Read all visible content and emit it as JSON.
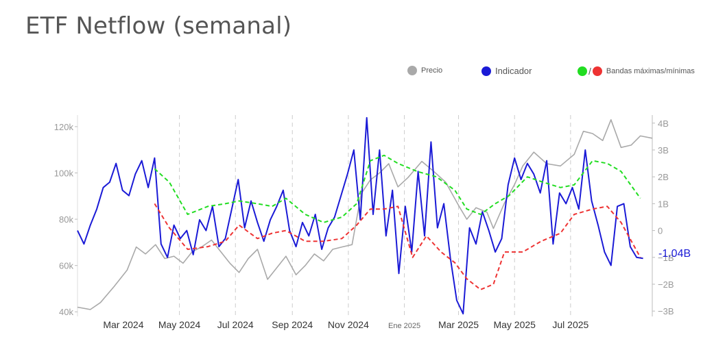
{
  "title": "ETF Netflow (semanal)",
  "legend": {
    "price": {
      "label": "Precio",
      "color": "#a9a9a9"
    },
    "indicator": {
      "label": "Indicador",
      "color": "#1a1ad6"
    },
    "bands": {
      "label": "Bandas máximas/mínimas",
      "max_color": "#22dd22",
      "min_color": "#ee3333",
      "separator": "/"
    }
  },
  "chart_data": {
    "type": "line",
    "title": "ETF Netflow (semanal)",
    "x_range": [
      "2024-01-11",
      "2025-09-28"
    ],
    "x_ticks": [
      {
        "date": "2024-03-01",
        "label": "Mar 2024",
        "gridline": false
      },
      {
        "date": "2024-05-01",
        "label": "May 2024",
        "gridline": true
      },
      {
        "date": "2024-07-01",
        "label": "Jul 2024",
        "gridline": true
      },
      {
        "date": "2024-09-01",
        "label": "Sep 2024",
        "gridline": true
      },
      {
        "date": "2024-11-01",
        "label": "Nov 2024",
        "gridline": true
      },
      {
        "date": "2025-01-01",
        "label": "Ene 2025",
        "gridline": true,
        "small": true
      },
      {
        "date": "2025-03-01",
        "label": "Mar 2025",
        "gridline": true
      },
      {
        "date": "2025-05-01",
        "label": "May 2025",
        "gridline": true
      },
      {
        "date": "2025-07-01",
        "label": "Jul 2025",
        "gridline": true
      }
    ],
    "y_left": {
      "range": [
        38000,
        125000
      ],
      "ticks": [
        {
          "v": 40000,
          "label": "40k"
        },
        {
          "v": 60000,
          "label": "60k"
        },
        {
          "v": 80000,
          "label": "80k"
        },
        {
          "v": 100000,
          "label": "100k"
        },
        {
          "v": 120000,
          "label": "120k"
        }
      ]
    },
    "y_right": {
      "range": [
        -3.2,
        4.3
      ],
      "ticks": [
        {
          "v": -3,
          "label": "−3B"
        },
        {
          "v": -2,
          "label": "−2B"
        },
        {
          "v": -1,
          "label": "−1B"
        },
        {
          "v": 0,
          "label": "0"
        },
        {
          "v": 1,
          "label": "1B"
        },
        {
          "v": 2,
          "label": "2B"
        },
        {
          "v": 3,
          "label": "3B"
        },
        {
          "v": 4,
          "label": "4B"
        }
      ]
    },
    "last_value_label": "-1.04B",
    "series": [
      {
        "name": "Precio",
        "axis": "left",
        "color": "#a9a9a9",
        "points": [
          [
            "2024-01-11",
            42000
          ],
          [
            "2024-01-25",
            41000
          ],
          [
            "2024-02-05",
            44000
          ],
          [
            "2024-02-20",
            51000
          ],
          [
            "2024-03-05",
            58000
          ],
          [
            "2024-03-15",
            68000
          ],
          [
            "2024-03-25",
            65000
          ],
          [
            "2024-04-05",
            69000
          ],
          [
            "2024-04-15",
            63000
          ],
          [
            "2024-04-25",
            64000
          ],
          [
            "2024-05-05",
            61000
          ],
          [
            "2024-05-15",
            66000
          ],
          [
            "2024-05-25",
            68000
          ],
          [
            "2024-06-05",
            71000
          ],
          [
            "2024-06-15",
            66000
          ],
          [
            "2024-06-25",
            61000
          ],
          [
            "2024-07-05",
            57000
          ],
          [
            "2024-07-15",
            63000
          ],
          [
            "2024-07-25",
            67000
          ],
          [
            "2024-08-05",
            54000
          ],
          [
            "2024-08-15",
            59000
          ],
          [
            "2024-08-25",
            64000
          ],
          [
            "2024-09-05",
            56000
          ],
          [
            "2024-09-15",
            60000
          ],
          [
            "2024-09-25",
            65000
          ],
          [
            "2024-10-05",
            62000
          ],
          [
            "2024-10-15",
            67000
          ],
          [
            "2024-10-25",
            68000
          ],
          [
            "2024-11-05",
            69000
          ],
          [
            "2024-11-15",
            91000
          ],
          [
            "2024-11-25",
            97000
          ],
          [
            "2024-12-05",
            100000
          ],
          [
            "2024-12-15",
            104000
          ],
          [
            "2024-12-25",
            94000
          ],
          [
            "2025-01-05",
            98000
          ],
          [
            "2025-01-20",
            105000
          ],
          [
            "2025-02-01",
            101000
          ],
          [
            "2025-02-15",
            96000
          ],
          [
            "2025-03-01",
            86000
          ],
          [
            "2025-03-10",
            80000
          ],
          [
            "2025-03-20",
            85000
          ],
          [
            "2025-04-01",
            83000
          ],
          [
            "2025-04-08",
            76000
          ],
          [
            "2025-04-20",
            87000
          ],
          [
            "2025-05-01",
            95000
          ],
          [
            "2025-05-10",
            103000
          ],
          [
            "2025-05-22",
            109000
          ],
          [
            "2025-06-05",
            104000
          ],
          [
            "2025-06-20",
            103000
          ],
          [
            "2025-07-05",
            108000
          ],
          [
            "2025-07-15",
            118000
          ],
          [
            "2025-07-25",
            117000
          ],
          [
            "2025-08-05",
            114000
          ],
          [
            "2025-08-14",
            123000
          ],
          [
            "2025-08-25",
            111000
          ],
          [
            "2025-09-05",
            112000
          ],
          [
            "2025-09-15",
            116000
          ],
          [
            "2025-09-28",
            115000
          ]
        ]
      },
      {
        "name": "Indicador",
        "axis": "right",
        "color": "#1a1ad6",
        "points": [
          [
            "2024-01-11",
            0.0
          ],
          [
            "2024-01-18",
            -0.5
          ],
          [
            "2024-01-25",
            0.2
          ],
          [
            "2024-02-01",
            0.8
          ],
          [
            "2024-02-08",
            1.6
          ],
          [
            "2024-02-15",
            1.8
          ],
          [
            "2024-02-22",
            2.5
          ],
          [
            "2024-02-29",
            1.5
          ],
          [
            "2024-03-07",
            1.3
          ],
          [
            "2024-03-14",
            2.1
          ],
          [
            "2024-03-21",
            2.6
          ],
          [
            "2024-03-28",
            1.6
          ],
          [
            "2024-04-04",
            2.7
          ],
          [
            "2024-04-11",
            -0.5
          ],
          [
            "2024-04-18",
            -1.0
          ],
          [
            "2024-04-25",
            0.2
          ],
          [
            "2024-05-02",
            -0.3
          ],
          [
            "2024-05-09",
            0.0
          ],
          [
            "2024-05-16",
            -0.9
          ],
          [
            "2024-05-23",
            0.4
          ],
          [
            "2024-05-30",
            0.0
          ],
          [
            "2024-06-06",
            0.9
          ],
          [
            "2024-06-13",
            -0.6
          ],
          [
            "2024-06-20",
            -0.3
          ],
          [
            "2024-06-27",
            0.8
          ],
          [
            "2024-07-04",
            1.9
          ],
          [
            "2024-07-11",
            0.1
          ],
          [
            "2024-07-18",
            1.1
          ],
          [
            "2024-07-25",
            0.3
          ],
          [
            "2024-08-01",
            -0.4
          ],
          [
            "2024-08-08",
            0.4
          ],
          [
            "2024-08-15",
            0.9
          ],
          [
            "2024-08-22",
            1.5
          ],
          [
            "2024-08-29",
            0.0
          ],
          [
            "2024-09-05",
            -0.6
          ],
          [
            "2024-09-12",
            0.3
          ],
          [
            "2024-09-19",
            -0.2
          ],
          [
            "2024-09-26",
            0.6
          ],
          [
            "2024-10-03",
            -0.7
          ],
          [
            "2024-10-10",
            0.1
          ],
          [
            "2024-10-17",
            0.5
          ],
          [
            "2024-10-24",
            1.3
          ],
          [
            "2024-10-31",
            2.1
          ],
          [
            "2024-11-07",
            3.0
          ],
          [
            "2024-11-14",
            0.4
          ],
          [
            "2024-11-21",
            4.2
          ],
          [
            "2024-11-28",
            0.6
          ],
          [
            "2024-12-05",
            3.0
          ],
          [
            "2024-12-12",
            -0.2
          ],
          [
            "2024-12-19",
            1.5
          ],
          [
            "2024-12-26",
            -1.6
          ],
          [
            "2025-01-02",
            0.9
          ],
          [
            "2025-01-09",
            -0.8
          ],
          [
            "2025-01-16",
            2.2
          ],
          [
            "2025-01-23",
            -0.2
          ],
          [
            "2025-01-30",
            3.3
          ],
          [
            "2025-02-06",
            0.1
          ],
          [
            "2025-02-13",
            1.0
          ],
          [
            "2025-02-20",
            -1.0
          ],
          [
            "2025-02-27",
            -2.6
          ],
          [
            "2025-03-06",
            -3.1
          ],
          [
            "2025-03-13",
            0.1
          ],
          [
            "2025-03-20",
            -0.5
          ],
          [
            "2025-03-27",
            0.7
          ],
          [
            "2025-04-03",
            0.0
          ],
          [
            "2025-04-10",
            -0.8
          ],
          [
            "2025-04-17",
            -0.3
          ],
          [
            "2025-04-24",
            1.7
          ],
          [
            "2025-05-01",
            2.7
          ],
          [
            "2025-05-08",
            1.9
          ],
          [
            "2025-05-15",
            2.5
          ],
          [
            "2025-05-22",
            2.1
          ],
          [
            "2025-05-29",
            1.4
          ],
          [
            "2025-06-05",
            2.6
          ],
          [
            "2025-06-12",
            -0.5
          ],
          [
            "2025-06-19",
            1.4
          ],
          [
            "2025-06-26",
            1.0
          ],
          [
            "2025-07-03",
            1.6
          ],
          [
            "2025-07-10",
            0.8
          ],
          [
            "2025-07-17",
            3.0
          ],
          [
            "2025-07-24",
            1.1
          ],
          [
            "2025-07-31",
            0.2
          ],
          [
            "2025-08-07",
            -0.8
          ],
          [
            "2025-08-14",
            -1.3
          ],
          [
            "2025-08-21",
            0.9
          ],
          [
            "2025-08-28",
            1.0
          ],
          [
            "2025-09-04",
            -0.6
          ],
          [
            "2025-09-11",
            -1.0
          ],
          [
            "2025-09-18",
            -1.04
          ]
        ]
      },
      {
        "name": "Banda máxima",
        "axis": "right",
        "color": "#22dd22",
        "dashed": true,
        "points": [
          [
            "2024-04-04",
            2.3
          ],
          [
            "2024-04-20",
            1.8
          ],
          [
            "2024-05-10",
            0.6
          ],
          [
            "2024-06-01",
            0.9
          ],
          [
            "2024-06-20",
            1.0
          ],
          [
            "2024-07-05",
            1.1
          ],
          [
            "2024-07-25",
            1.0
          ],
          [
            "2024-08-10",
            0.9
          ],
          [
            "2024-08-25",
            1.2
          ],
          [
            "2024-09-15",
            0.6
          ],
          [
            "2024-10-05",
            0.3
          ],
          [
            "2024-10-25",
            0.5
          ],
          [
            "2024-11-10",
            1.0
          ],
          [
            "2024-11-25",
            2.6
          ],
          [
            "2024-12-10",
            2.8
          ],
          [
            "2024-12-25",
            2.5
          ],
          [
            "2025-01-15",
            2.2
          ],
          [
            "2025-02-05",
            2.0
          ],
          [
            "2025-02-25",
            1.5
          ],
          [
            "2025-03-10",
            0.8
          ],
          [
            "2025-03-25",
            0.6
          ],
          [
            "2025-04-10",
            1.0
          ],
          [
            "2025-04-25",
            1.3
          ],
          [
            "2025-05-15",
            2.0
          ],
          [
            "2025-06-01",
            1.8
          ],
          [
            "2025-06-20",
            1.6
          ],
          [
            "2025-07-05",
            1.7
          ],
          [
            "2025-07-25",
            2.6
          ],
          [
            "2025-08-10",
            2.5
          ],
          [
            "2025-08-25",
            2.2
          ],
          [
            "2025-09-15",
            1.2
          ]
        ]
      },
      {
        "name": "Banda mínima",
        "axis": "right",
        "color": "#ee3333",
        "dashed": true,
        "points": [
          [
            "2024-04-04",
            1.0
          ],
          [
            "2024-04-20",
            0.1
          ],
          [
            "2024-05-10",
            -0.7
          ],
          [
            "2024-06-01",
            -0.6
          ],
          [
            "2024-06-20",
            -0.4
          ],
          [
            "2024-07-05",
            0.2
          ],
          [
            "2024-07-25",
            -0.3
          ],
          [
            "2024-08-10",
            -0.1
          ],
          [
            "2024-08-25",
            0.0
          ],
          [
            "2024-09-15",
            -0.4
          ],
          [
            "2024-10-05",
            -0.4
          ],
          [
            "2024-10-25",
            -0.3
          ],
          [
            "2024-11-10",
            0.2
          ],
          [
            "2024-11-25",
            0.8
          ],
          [
            "2024-12-10",
            0.8
          ],
          [
            "2024-12-25",
            0.9
          ],
          [
            "2025-01-10",
            -1.0
          ],
          [
            "2025-01-25",
            -0.2
          ],
          [
            "2025-02-10",
            -0.8
          ],
          [
            "2025-02-25",
            -1.2
          ],
          [
            "2025-03-10",
            -1.8
          ],
          [
            "2025-03-25",
            -2.2
          ],
          [
            "2025-04-08",
            -2.0
          ],
          [
            "2025-04-20",
            -0.8
          ],
          [
            "2025-05-10",
            -0.8
          ],
          [
            "2025-05-30",
            -0.4
          ],
          [
            "2025-06-20",
            -0.1
          ],
          [
            "2025-07-05",
            0.6
          ],
          [
            "2025-07-25",
            0.8
          ],
          [
            "2025-08-10",
            0.9
          ],
          [
            "2025-08-25",
            0.3
          ],
          [
            "2025-09-15",
            -1.0
          ]
        ]
      }
    ]
  }
}
